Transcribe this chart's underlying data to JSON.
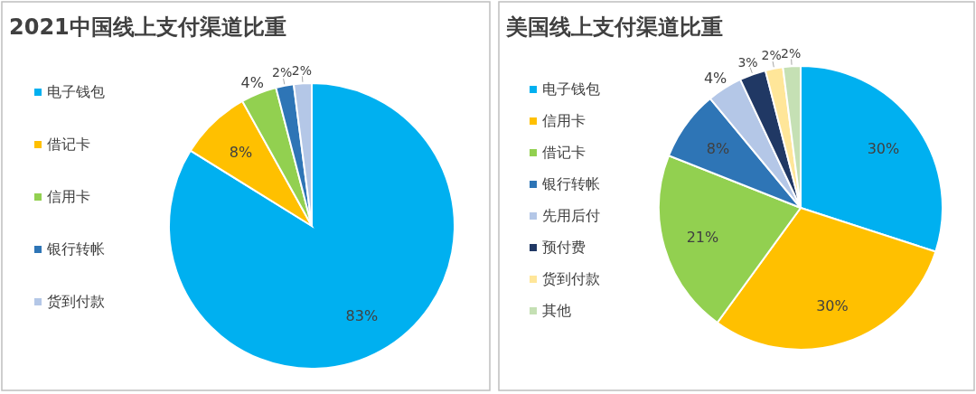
{
  "chart_data": [
    {
      "type": "pie",
      "title": "2021中国线上支付渠道比重",
      "legend": "left",
      "categories": [
        "电子钱包",
        "借记卡",
        "信用卡",
        "银行转帐",
        "货到付款"
      ],
      "values": [
        83,
        8,
        4,
        2,
        2
      ],
      "value_labels": [
        "83%",
        "8%",
        "4%",
        "2%",
        "2%"
      ],
      "colors": [
        "#00b0f0",
        "#ffc000",
        "#92d050",
        "#2e75b6",
        "#b4c7e7"
      ]
    },
    {
      "type": "pie",
      "title": "美国线上支付渠道比重",
      "legend": "left",
      "categories": [
        "电子钱包",
        "信用卡",
        "借记卡",
        "银行转帐",
        "先用后付",
        "预付费",
        "货到付款",
        "其他"
      ],
      "values": [
        30,
        30,
        21,
        8,
        4,
        3,
        2,
        2
      ],
      "value_labels": [
        "30%",
        "30%",
        "21%",
        "8%",
        "4%",
        "3%",
        "2%",
        "2%"
      ],
      "colors": [
        "#00b0f0",
        "#ffc000",
        "#92d050",
        "#2e75b6",
        "#b4c7e7",
        "#203864",
        "#ffe699",
        "#c5e0b4"
      ]
    }
  ]
}
